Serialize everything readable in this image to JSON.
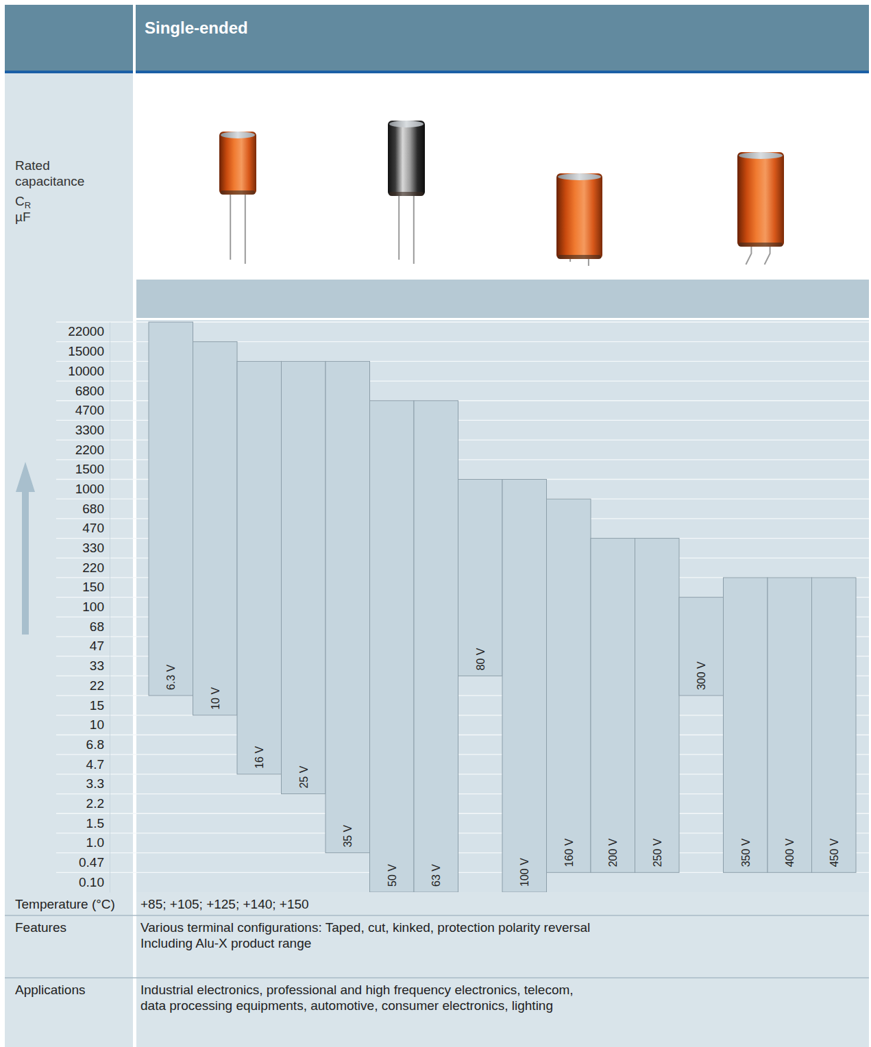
{
  "chart_data": {
    "type": "range_bar",
    "title": "Single-ended",
    "ylabel": {
      "text": "Rated capacitance",
      "symbol": "C",
      "subscript": "R",
      "unit": "µF"
    },
    "categories": [
      "6.3 V",
      "10 V",
      "16 V",
      "25 V",
      "35 V",
      "50 V",
      "63 V",
      "80 V",
      "100 V",
      "160 V",
      "200 V",
      "250 V",
      "300 V",
      "350 V",
      "400 V",
      "450 V"
    ],
    "values": [
      [
        22,
        22000
      ],
      [
        15,
        15000
      ],
      [
        4.7,
        10000
      ],
      [
        3.3,
        10000
      ],
      [
        1,
        10000
      ],
      [
        0.1,
        4700
      ],
      [
        0.1,
        4700
      ],
      [
        33,
        1000
      ],
      [
        0.1,
        1000
      ],
      [
        0.47,
        680
      ],
      [
        0.47,
        330
      ],
      [
        0.47,
        330
      ],
      [
        22,
        100
      ],
      [
        0.47,
        150
      ],
      [
        0.47,
        150
      ],
      [
        0.47,
        150
      ]
    ],
    "color": "#c5d5de",
    "ylim": [
      0.1,
      22000
    ],
    "yticks": [
      {
        "value": 0.1,
        "label": "0.10"
      },
      0.47,
      {
        "value": 1,
        "label": "1.0"
      },
      1.5,
      2.2,
      3.3,
      4.7,
      6.8,
      10,
      15,
      22,
      33,
      47,
      68,
      100,
      150,
      220,
      330,
      470,
      680,
      1000,
      1500,
      2200,
      3300,
      4700,
      6800,
      10000,
      15000,
      22000
    ],
    "grid": true
  },
  "table": {
    "rows": [
      {
        "label": "Temperature (°C)",
        "lines": [
          "+85; +105; +125; +140; +150"
        ]
      },
      {
        "label": "Features",
        "lines": [
          "Various terminal configurations: Taped, cut, kinked, protection polarity reversal",
          "Including Alu-X product range"
        ]
      },
      {
        "label": "Applications",
        "lines": [
          "Industrial electronics, professional and high frequency electronics, telecom,",
          "data processing equipments, automotive, consumer electronics, lighting"
        ]
      }
    ]
  }
}
